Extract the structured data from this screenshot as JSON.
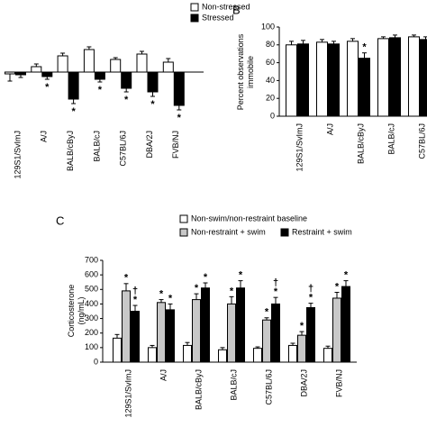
{
  "chart_data": [
    {
      "type": "bar",
      "categories": [
        "129S1/SvImJ",
        "A/J",
        "BALB/cByJ",
        "BALB/cJ",
        "C57BL/6J",
        "DBA/2J",
        "FVB/NJ"
      ],
      "ylim": [
        -50,
        40
      ],
      "series": [
        {
          "name": "Non-stressed",
          "color": "#ffffff",
          "values": [
            -2,
            6,
            18,
            25,
            14,
            20,
            11
          ],
          "errors": [
            8,
            3,
            3,
            3,
            2,
            3,
            4
          ]
        },
        {
          "name": "Stressed",
          "color": "#000000",
          "values": [
            -3,
            -5,
            -30,
            -8,
            -18,
            -22,
            -37
          ],
          "errors": [
            3,
            3,
            5,
            3,
            4,
            5,
            5
          ],
          "markers": [
            null,
            [
              "*"
            ],
            [
              "*"
            ],
            [
              "*"
            ],
            [
              "*"
            ],
            [
              "*"
            ],
            [
              "*"
            ]
          ]
        }
      ]
    },
    {
      "type": "bar",
      "panel_label": "B",
      "ylabel_lines": [
        "Percent observations",
        "immobile"
      ],
      "categories": [
        "129S1/SvImJ",
        "A/J",
        "BALB/cByJ",
        "BALB/cJ",
        "C57BL/6J"
      ],
      "ylim": [
        0,
        100
      ],
      "yticks": [
        0,
        20,
        40,
        60,
        80,
        100
      ],
      "series": [
        {
          "name": "Non-stressed",
          "color": "#ffffff",
          "values": [
            80,
            83,
            84,
            87,
            89
          ],
          "errors": [
            4,
            3,
            3,
            2,
            2
          ]
        },
        {
          "name": "Stressed",
          "color": "#000000",
          "values": [
            81,
            81,
            65,
            88,
            86
          ],
          "errors": [
            4,
            3,
            6,
            3,
            3
          ],
          "markers": [
            null,
            null,
            [
              "*"
            ],
            null,
            null
          ]
        }
      ]
    },
    {
      "type": "bar",
      "panel_label": "C",
      "ylabel_lines": [
        "Corticosterone",
        "(ng/mL)"
      ],
      "categories": [
        "129S1/SvImJ",
        "A/J",
        "BALB/cByJ",
        "BALB/cJ",
        "C57BL/6J",
        "DBA/2J",
        "FVB/NJ"
      ],
      "ylim": [
        0,
        700
      ],
      "yticks": [
        0,
        100,
        200,
        300,
        400,
        500,
        600,
        700
      ],
      "series": [
        {
          "name": "Non-swim/non-restraint baseline",
          "color": "#ffffff",
          "values": [
            165,
            100,
            115,
            85,
            95,
            115,
            95
          ],
          "errors": [
            25,
            15,
            20,
            15,
            10,
            15,
            15
          ]
        },
        {
          "name": "Non-restraint + swim",
          "color": "#c8c8c8",
          "values": [
            490,
            410,
            430,
            400,
            290,
            185,
            440
          ],
          "errors": [
            50,
            20,
            40,
            50,
            15,
            25,
            40
          ],
          "markers": [
            [
              "*"
            ],
            [
              "*"
            ],
            [
              "*"
            ],
            [
              "*"
            ],
            [
              "*"
            ],
            [
              "*"
            ],
            [
              "*"
            ]
          ]
        },
        {
          "name": "Restraint + swim",
          "color": "#000000",
          "values": [
            350,
            360,
            510,
            510,
            400,
            375,
            520
          ],
          "errors": [
            40,
            40,
            35,
            50,
            45,
            30,
            40
          ],
          "markers": [
            [
              "†",
              "*"
            ],
            [
              "*"
            ],
            [
              "*"
            ],
            [
              "*"
            ],
            [
              "†",
              "*"
            ],
            [
              "†",
              "*"
            ],
            [
              "*"
            ]
          ]
        }
      ]
    }
  ]
}
